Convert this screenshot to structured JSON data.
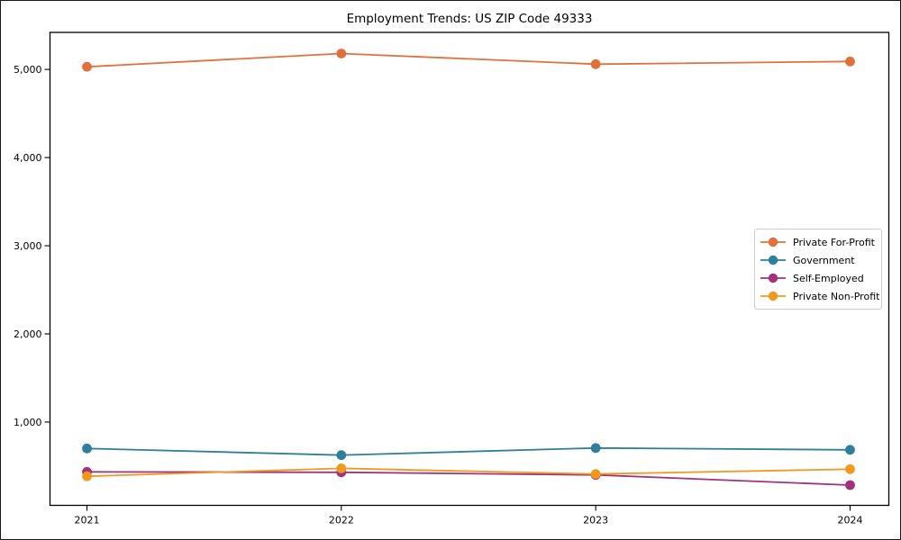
{
  "chart_data": {
    "type": "line",
    "title": "Employment Trends: US ZIP Code 49333",
    "xlabel": "",
    "ylabel": "",
    "x": [
      "2021",
      "2022",
      "2023",
      "2024"
    ],
    "series": [
      {
        "name": "Private For-Profit",
        "color": "#e2703c",
        "values": [
          5030,
          5180,
          5060,
          5090
        ]
      },
      {
        "name": "Government",
        "color": "#2e7f9e",
        "values": [
          700,
          625,
          705,
          685
        ]
      },
      {
        "name": "Self-Employed",
        "color": "#a0337c",
        "values": [
          435,
          430,
          400,
          285
        ]
      },
      {
        "name": "Private Non-Profit",
        "color": "#f0991f",
        "values": [
          385,
          475,
          410,
          465
        ]
      }
    ],
    "yticks": [
      {
        "value": 1000,
        "label": "1,000"
      },
      {
        "value": 2000,
        "label": "2,000"
      },
      {
        "value": 3000,
        "label": "3,000"
      },
      {
        "value": 4000,
        "label": "4,000"
      },
      {
        "value": 5000,
        "label": "5,000"
      }
    ],
    "ylim": [
      55,
      5420
    ],
    "grid": false,
    "legend_position": "center-right",
    "marker": "circle"
  }
}
